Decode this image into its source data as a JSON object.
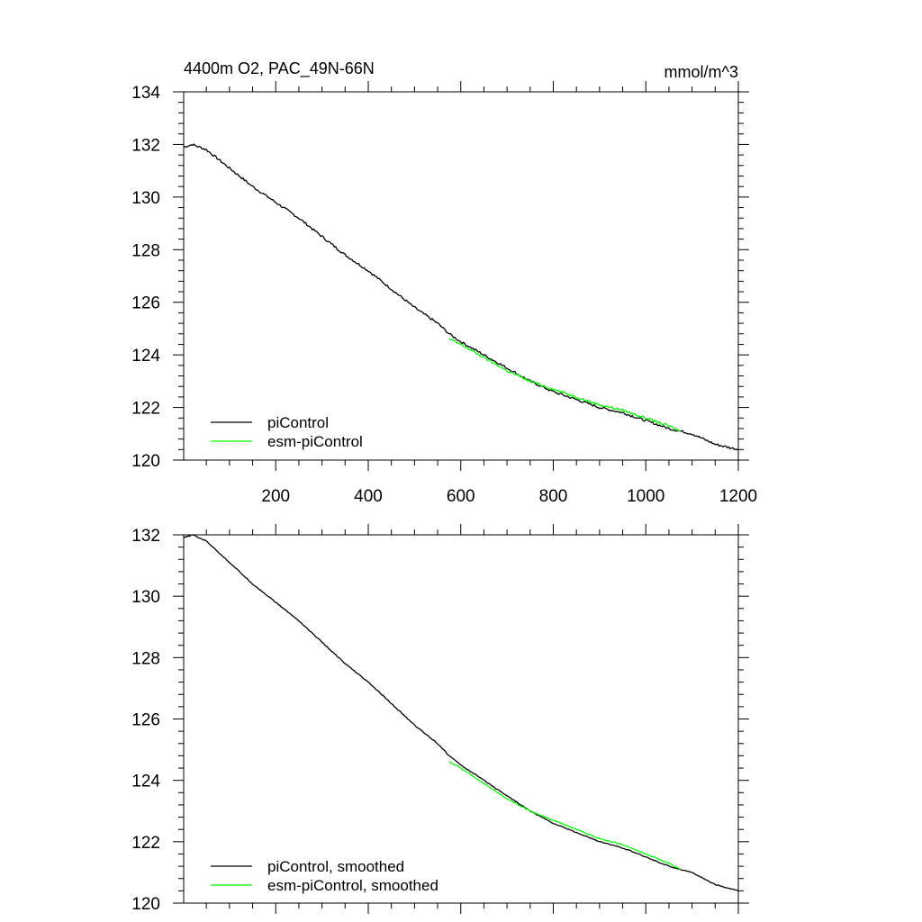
{
  "chart_data": [
    {
      "type": "line",
      "title": "4400m O2, PAC_49N-66N",
      "units": "mmol/m^3",
      "xlim": [
        1,
        1200
      ],
      "ylim": [
        120,
        134
      ],
      "xticks": [
        200,
        400,
        600,
        800,
        1000,
        1200
      ],
      "yticks": [
        120,
        122,
        124,
        126,
        128,
        130,
        132,
        134
      ],
      "xtick_labels_visible": true,
      "grid": false,
      "legend_position": "bottom-left",
      "series": [
        {
          "name": "piControl",
          "color": "#000000",
          "x": [
            1,
            20,
            50,
            100,
            150,
            200,
            250,
            300,
            350,
            400,
            450,
            500,
            550,
            575,
            600,
            650,
            700,
            750,
            800,
            850,
            900,
            950,
            1000,
            1050,
            1100,
            1150,
            1200
          ],
          "y": [
            131.9,
            132.0,
            131.8,
            131.1,
            130.4,
            129.8,
            129.2,
            128.5,
            127.8,
            127.2,
            126.5,
            125.8,
            125.2,
            124.8,
            124.5,
            124.0,
            123.5,
            123.0,
            122.6,
            122.3,
            122.0,
            121.8,
            121.5,
            121.2,
            121.0,
            120.6,
            120.4
          ]
        },
        {
          "name": "esm-piControl",
          "color": "#00ff00",
          "x": [
            575,
            600,
            650,
            700,
            750,
            800,
            850,
            900,
            950,
            1000,
            1050,
            1075
          ],
          "y": [
            124.6,
            124.4,
            123.9,
            123.4,
            123.0,
            122.7,
            122.4,
            122.1,
            121.9,
            121.6,
            121.3,
            121.1
          ]
        }
      ]
    },
    {
      "type": "line",
      "xlim": [
        1,
        1200
      ],
      "ylim": [
        120,
        132
      ],
      "xticks": [
        200,
        400,
        600,
        800,
        1000,
        1200
      ],
      "yticks": [
        120,
        122,
        124,
        126,
        128,
        130,
        132
      ],
      "xtick_labels_visible": false,
      "grid": false,
      "legend_position": "bottom-left",
      "series": [
        {
          "name": "piControl, smoothed",
          "color": "#000000",
          "x": [
            1,
            20,
            50,
            100,
            150,
            200,
            250,
            300,
            350,
            400,
            450,
            500,
            550,
            575,
            600,
            650,
            700,
            750,
            800,
            850,
            900,
            950,
            1000,
            1050,
            1100,
            1150,
            1200
          ],
          "y": [
            131.9,
            132.0,
            131.8,
            131.1,
            130.4,
            129.8,
            129.2,
            128.5,
            127.8,
            127.2,
            126.5,
            125.8,
            125.2,
            124.8,
            124.5,
            124.0,
            123.5,
            123.0,
            122.6,
            122.3,
            122.0,
            121.8,
            121.5,
            121.2,
            121.0,
            120.6,
            120.4
          ]
        },
        {
          "name": "esm-piControl, smoothed",
          "color": "#00ff00",
          "x": [
            575,
            600,
            650,
            700,
            750,
            800,
            850,
            900,
            950,
            1000,
            1050,
            1075
          ],
          "y": [
            124.6,
            124.4,
            123.9,
            123.4,
            123.0,
            122.7,
            122.4,
            122.1,
            121.9,
            121.6,
            121.3,
            121.1
          ]
        }
      ]
    }
  ]
}
